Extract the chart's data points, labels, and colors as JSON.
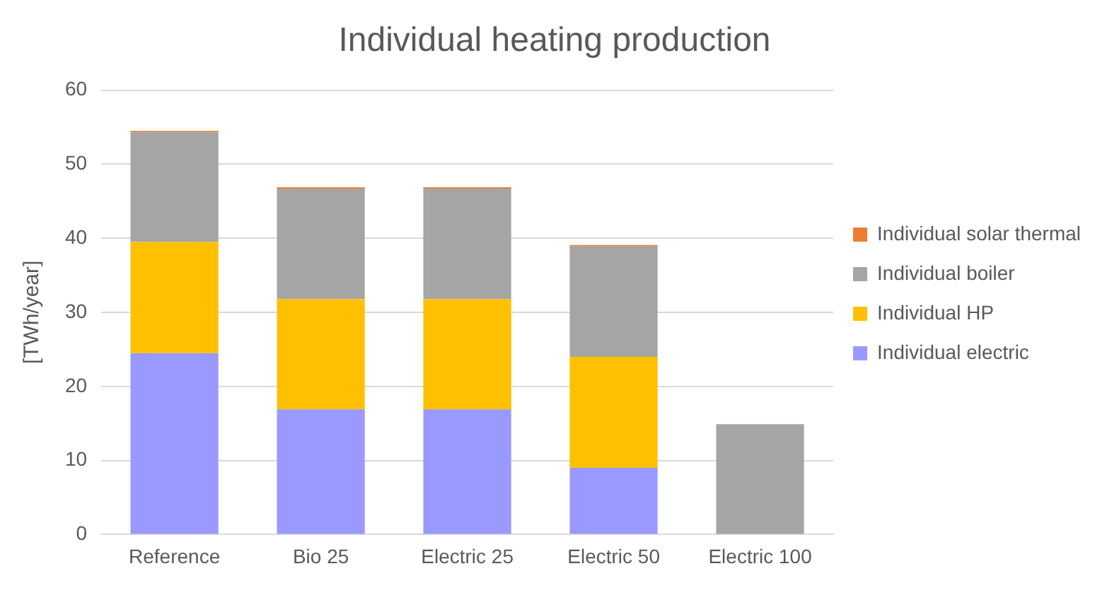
{
  "chart_data": {
    "type": "bar",
    "title": "Individual heating production",
    "ylabel": "[TWh/year]",
    "categories": [
      "Reference",
      "Bio 25",
      "Electric 25",
      "Electric 50",
      "Electric 100"
    ],
    "stacked": true,
    "ylim": [
      0,
      60
    ],
    "yticks": [
      0,
      10,
      20,
      30,
      40,
      50,
      60
    ],
    "grid": "y",
    "legend": "right",
    "series": [
      {
        "name": "Individual electric",
        "color": "#9999ff",
        "values": [
          24.5,
          16.9,
          16.9,
          9.0,
          0
        ]
      },
      {
        "name": "Individual HP",
        "color": "#ffc000",
        "values": [
          15,
          14.9,
          14.9,
          15,
          0
        ]
      },
      {
        "name": "Individual boiler",
        "color": "#a5a5a5",
        "values": [
          14.8,
          14.9,
          14.9,
          14.9,
          14.9
        ]
      },
      {
        "name": "Individual solar thermal",
        "color": "#ed7d31",
        "values": [
          0.2,
          0.2,
          0.2,
          0.2,
          0
        ]
      }
    ]
  }
}
